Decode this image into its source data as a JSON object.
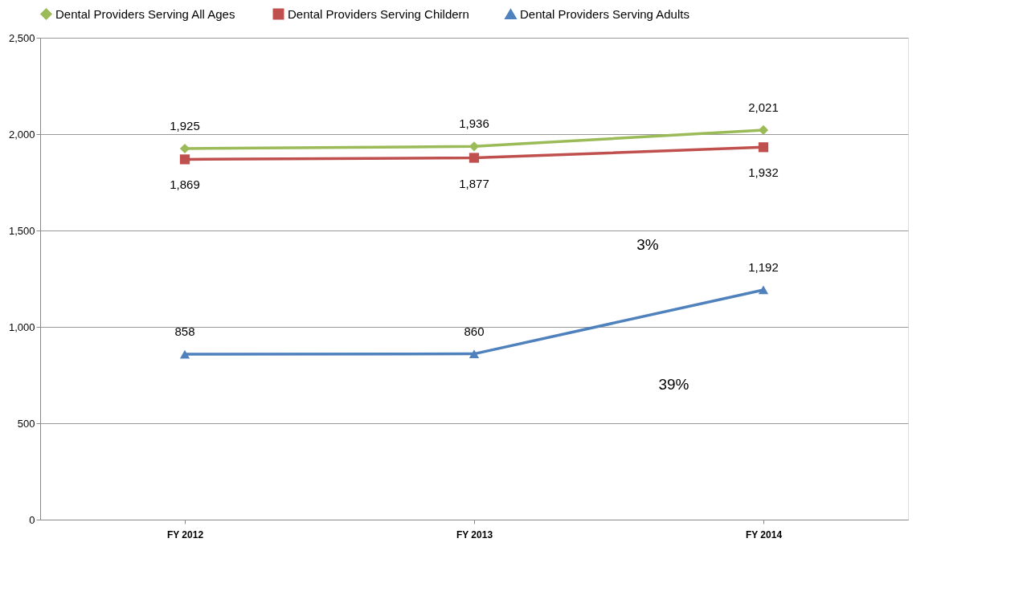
{
  "chart_data": {
    "type": "line",
    "categories": [
      "FY 2012",
      "FY 2013",
      "FY 2014"
    ],
    "series": [
      {
        "name": "Dental Providers Serving All Ages",
        "color": "#9bbb59",
        "marker": "diamond",
        "values": [
          1925,
          1936,
          2021
        ],
        "value_labels": [
          "1,925",
          "1,936",
          "2,021"
        ]
      },
      {
        "name": "Dental Providers Serving Childern",
        "color": "#c0504d",
        "marker": "square",
        "values": [
          1869,
          1877,
          1932
        ],
        "value_labels": [
          "1,869",
          "1,877",
          "1,932"
        ]
      },
      {
        "name": "Dental Providers Serving Adults",
        "color": "#4f81bd",
        "marker": "triangle",
        "values": [
          858,
          860,
          1192
        ],
        "value_labels": [
          "858",
          "860",
          "1,192"
        ]
      }
    ],
    "ylim": [
      0,
      2500
    ],
    "yticks": [
      0,
      {
        "value": 500,
        "label": "500"
      },
      {
        "value": 1000,
        "label": "1,000"
      },
      {
        "value": 1500,
        "label": "1,500"
      },
      {
        "value": 2000,
        "label": "2,000"
      },
      {
        "value": 2500,
        "label": "2,500"
      }
    ],
    "grid": "y",
    "legend": "top",
    "annotations": [
      "3%",
      "39%"
    ]
  }
}
